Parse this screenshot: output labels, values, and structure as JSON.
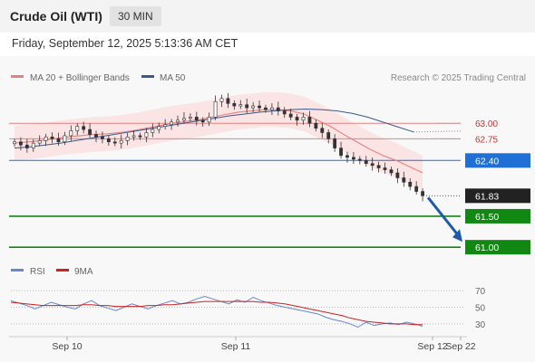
{
  "header": {
    "title": "Crude Oil (WTI)",
    "interval": "30 MIN",
    "datetime": "Friday, September 12, 2025 5:13:36 AM CET"
  },
  "legend": {
    "ma20_label": "MA 20 + Bollinger Bands",
    "ma50_label": "MA 50",
    "credit": "Research © 2025 Trading Central",
    "rsi_label": "RSI",
    "ma9_label": "9MA"
  },
  "colors": {
    "ma20": "#e88080",
    "ma50": "#3a5a8c",
    "bollinger_fill": "#fbdede",
    "resistance": "#e88080",
    "pivot": "#1f6fd6",
    "support": "#118811",
    "last_price": "#222222",
    "forecast_arrow": "#1f5ba8",
    "rsi": "#6688cc",
    "ma9": "#cc2222"
  },
  "chart_data": [
    {
      "type": "line",
      "name": "price",
      "ylim": [
        60.9,
        63.5
      ],
      "x_ticks": [
        "Sep 10",
        "Sep 11",
        "Sep 12",
        "Sep 22"
      ],
      "x_tick_pos": [
        8,
        32,
        60,
        64
      ],
      "bars_x_range": [
        0,
        64
      ],
      "closes": [
        62.7,
        62.65,
        62.6,
        62.68,
        62.72,
        62.78,
        62.75,
        62.7,
        62.8,
        62.88,
        62.95,
        62.9,
        62.82,
        62.78,
        62.75,
        62.7,
        62.68,
        62.72,
        62.78,
        62.8,
        62.78,
        62.85,
        62.9,
        62.95,
        62.98,
        63.02,
        63.05,
        63.08,
        63.1,
        63.05,
        63.02,
        63.1,
        63.35,
        63.4,
        63.32,
        63.28,
        63.3,
        63.25,
        63.28,
        63.25,
        63.22,
        63.25,
        63.2,
        63.15,
        63.1,
        63.05,
        63.1,
        63.0,
        62.92,
        62.85,
        62.75,
        62.6,
        62.48,
        62.45,
        62.42,
        62.4,
        62.35,
        62.32,
        62.28,
        62.25,
        62.2,
        62.12,
        62.05,
        61.98,
        61.9,
        61.83
      ],
      "ma20": [
        62.68,
        62.7,
        62.72,
        62.75,
        62.78,
        62.8,
        62.82,
        62.83,
        62.85,
        62.88,
        62.92,
        62.96,
        63.0,
        63.03,
        63.06,
        63.1,
        63.14,
        63.18,
        63.2,
        63.22,
        63.22,
        63.2,
        63.15,
        63.05,
        62.95,
        62.82,
        62.7,
        62.58,
        62.48,
        62.4,
        62.3,
        62.2
      ],
      "ma50": [
        62.6,
        62.62,
        62.65,
        62.68,
        62.72,
        62.76,
        62.8,
        62.84,
        62.88,
        62.92,
        62.96,
        63.0,
        63.04,
        63.08,
        63.12,
        63.15,
        63.18,
        63.2,
        63.22,
        63.23,
        63.22,
        63.2,
        63.16,
        63.1,
        63.02,
        62.94,
        62.86
      ],
      "levels": [
        {
          "value": 63.0,
          "label": "63.00",
          "kind": "resistance"
        },
        {
          "value": 62.75,
          "label": "62.75",
          "kind": "resistance"
        },
        {
          "value": 62.4,
          "label": "62.40",
          "kind": "pivot"
        },
        {
          "value": 61.83,
          "label": "61.83",
          "kind": "last"
        },
        {
          "value": 61.5,
          "label": "61.50",
          "kind": "support"
        },
        {
          "value": 61.0,
          "label": "61.00",
          "kind": "support"
        }
      ],
      "forecast": {
        "from_value": 61.83,
        "to_value": 61.0
      }
    },
    {
      "type": "line",
      "name": "RSI",
      "ylim": [
        20,
        80
      ],
      "ticks": [
        70,
        50,
        30
      ],
      "tick_labels": [
        "70",
        "50",
        "30"
      ],
      "rsi": [
        58,
        55,
        52,
        48,
        52,
        56,
        53,
        50,
        48,
        54,
        58,
        52,
        49,
        46,
        50,
        54,
        51,
        48,
        52,
        55,
        58,
        54,
        56,
        60,
        63,
        60,
        57,
        54,
        59,
        56,
        62,
        58,
        55,
        52,
        50,
        48,
        46,
        44,
        42,
        38,
        35,
        33,
        30,
        26,
        32,
        28,
        30,
        31,
        29,
        32,
        30,
        27
      ],
      "ma9": [
        56,
        55,
        54,
        53,
        52,
        52,
        52,
        52,
        52,
        53,
        53,
        52,
        52,
        51,
        51,
        51,
        51,
        52,
        52,
        53,
        53,
        54,
        55,
        56,
        57,
        57,
        57,
        57,
        57,
        57,
        57,
        56,
        56,
        55,
        54,
        52,
        50,
        48,
        46,
        44,
        42,
        40,
        37,
        35,
        33,
        32,
        31,
        30,
        30,
        30,
        29,
        29
      ]
    }
  ]
}
